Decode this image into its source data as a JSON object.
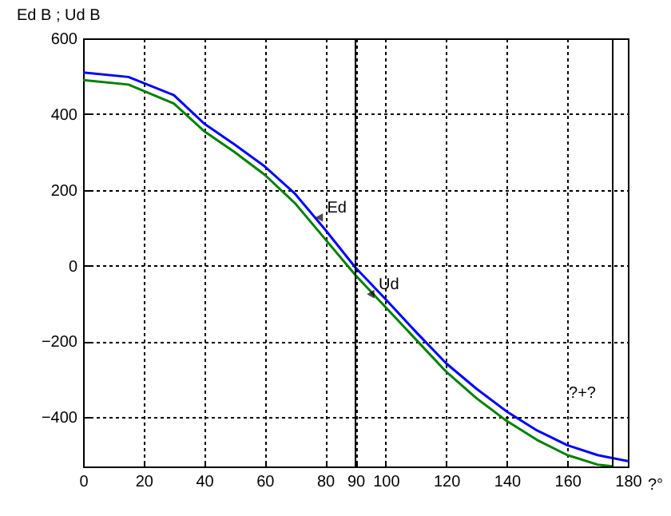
{
  "chart_data": {
    "type": "line",
    "xlabel": "?°",
    "ylabel": "Ed  B ; Ud  B",
    "series": [
      {
        "color": "#0000ff",
        "x": [
          0,
          15,
          30,
          40,
          50,
          60,
          70,
          80,
          90,
          100,
          110,
          120,
          130,
          140,
          150,
          160,
          170,
          180
        ],
        "values": [
          510,
          498,
          450,
          375,
          320,
          262,
          190,
          95,
          -5,
          -89,
          -175,
          -258,
          -325,
          -385,
          -435,
          -474,
          -500,
          -516
        ]
      },
      {
        "color": "#008000",
        "x": [
          0,
          15,
          30,
          40,
          50,
          60,
          70,
          80,
          90,
          100,
          110,
          120,
          130,
          140,
          150,
          160,
          170,
          175
        ],
        "values": [
          490,
          478,
          428,
          355,
          300,
          240,
          165,
          70,
          -25,
          -110,
          -195,
          -280,
          -350,
          -410,
          -460,
          -500,
          -525,
          -530
        ]
      }
    ],
    "xlim": [
      0,
      180
    ],
    "xticks": [
      0,
      20,
      40,
      60,
      80,
      90,
      100,
      120,
      140,
      160,
      180
    ],
    "ylim": [
      -530,
      600
    ],
    "yticks": [
      -400,
      -200,
      0,
      200,
      400,
      600
    ],
    "grid": true,
    "ref_lines": [
      {
        "axis": "x",
        "value": 90,
        "color": "#000000"
      },
      {
        "axis": "x",
        "value": 175,
        "color": "#000000"
      }
    ],
    "annotations": [
      {
        "text": "Ed",
        "x": 78,
        "y": 127
      },
      {
        "text": "Ud",
        "x": 95,
        "y": -75
      },
      "?+?"
    ]
  }
}
